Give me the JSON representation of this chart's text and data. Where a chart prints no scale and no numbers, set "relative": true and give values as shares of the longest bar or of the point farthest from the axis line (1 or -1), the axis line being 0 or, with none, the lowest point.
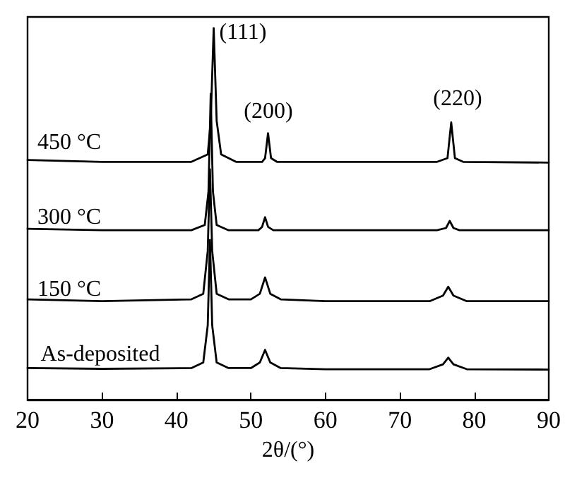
{
  "chart_data": {
    "type": "line",
    "relative": true,
    "xlabel": "2θ/(°)",
    "xlim": [
      20,
      90
    ],
    "xticks": [
      20,
      30,
      40,
      50,
      60,
      70,
      80,
      90
    ],
    "grid": false,
    "marker": "none",
    "line_style": "solid",
    "series": [
      {
        "color": "#000000",
        "x": [
          20,
          30,
          42,
          43.6,
          44.2,
          44.5,
          44.8,
          45.4,
          47,
          50,
          51.2,
          51.9,
          52.6,
          54,
          60,
          74,
          75.8,
          76.5,
          77.2,
          79,
          90
        ],
        "values": [
          0.085,
          0.083,
          0.085,
          0.1,
          0.2,
          0.43,
          0.2,
          0.1,
          0.085,
          0.085,
          0.1,
          0.134,
          0.1,
          0.085,
          0.082,
          0.082,
          0.095,
          0.113,
          0.095,
          0.082,
          0.081
        ]
      },
      {
        "color": "#000000",
        "x": [
          20,
          30,
          42,
          43.6,
          44.2,
          44.5,
          44.8,
          45.4,
          47,
          50,
          51.2,
          51.9,
          52.6,
          54,
          60,
          74,
          75.8,
          76.5,
          77.2,
          79,
          90
        ],
        "values": [
          0.27,
          0.265,
          0.27,
          0.285,
          0.4,
          0.62,
          0.4,
          0.285,
          0.27,
          0.27,
          0.285,
          0.329,
          0.285,
          0.27,
          0.265,
          0.265,
          0.28,
          0.304,
          0.28,
          0.265,
          0.265
        ]
      },
      {
        "color": "#000000",
        "x": [
          20,
          30,
          42,
          43.8,
          44.3,
          44.6,
          44.9,
          45.4,
          47,
          51,
          51.5,
          51.9,
          52.3,
          53,
          60,
          75,
          76.2,
          76.7,
          77.2,
          78,
          90
        ],
        "values": [
          0.46,
          0.456,
          0.456,
          0.47,
          0.56,
          0.823,
          0.56,
          0.47,
          0.456,
          0.456,
          0.465,
          0.491,
          0.465,
          0.456,
          0.456,
          0.456,
          0.462,
          0.481,
          0.462,
          0.456,
          0.456
        ]
      },
      {
        "color": "#000000",
        "x": [
          20,
          30,
          42,
          44.2,
          44.6,
          45,
          45.4,
          46,
          48,
          51.5,
          51.9,
          52.3,
          52.7,
          53.5,
          60,
          75,
          76.4,
          76.9,
          77.4,
          78.5,
          90
        ],
        "values": [
          0.645,
          0.64,
          0.64,
          0.66,
          0.75,
          1.0,
          0.75,
          0.66,
          0.64,
          0.64,
          0.65,
          0.717,
          0.65,
          0.64,
          0.64,
          0.64,
          0.65,
          0.746,
          0.65,
          0.64,
          0.638
        ]
      }
    ],
    "annotations": [
      "As-deposited",
      "150 °C",
      "300 °C",
      "450 °C",
      "(111)",
      "(200)",
      "(220)"
    ]
  }
}
